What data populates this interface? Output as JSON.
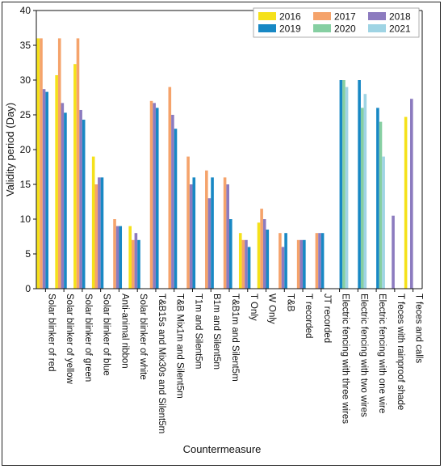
{
  "chart_data": {
    "type": "bar",
    "title": "",
    "xlabel": "Countermeasure",
    "ylabel": "Validity period (Day)",
    "ylim": [
      0,
      40
    ],
    "yticks": [
      0,
      5,
      10,
      15,
      20,
      25,
      30,
      35,
      40
    ],
    "grid": false,
    "legend_position": "top-right",
    "categories": [
      "Solar blinker of red",
      "Solar blinker of yellow",
      "Solar blinker of green",
      "Solar blinker of blue",
      "Anti-animal ribbon",
      "Solar blinker of white",
      "T&B15s and Mix30s and Silent5m",
      "T&B Mix1m and Silent5m",
      "T1m and Silent5m",
      "B1m and Silent5m",
      "T&B1m and Silent5m",
      "T Only",
      "W Only",
      "T&B",
      "T recorded",
      "JT recorded",
      "Electric fencing with three wires",
      "Electric fencing with two wires",
      "Electric fencing with one wire",
      "T feces with rainproof shade",
      "T feces and calls"
    ],
    "series": [
      {
        "name": "2016",
        "color": "#f5e11a",
        "values": [
          36,
          30.7,
          32.3,
          19,
          null,
          9,
          null,
          null,
          null,
          null,
          null,
          8,
          9.5,
          null,
          null,
          null,
          null,
          null,
          null,
          null,
          24.7
        ]
      },
      {
        "name": "2017",
        "color": "#f5a36b",
        "values": [
          36,
          36,
          36,
          15,
          10,
          7,
          27,
          29,
          19,
          17,
          16,
          7,
          11.5,
          8,
          7,
          8,
          null,
          null,
          null,
          null,
          null
        ]
      },
      {
        "name": "2018",
        "color": "#8c7bbf",
        "values": [
          28.7,
          26.7,
          25.7,
          16,
          9,
          8,
          26.7,
          25,
          15,
          13,
          15,
          7,
          10,
          6,
          7,
          8,
          null,
          null,
          null,
          10.5,
          27.3
        ]
      },
      {
        "name": "2019",
        "color": "#1888c4",
        "values": [
          28.3,
          25.3,
          24.3,
          16,
          9,
          7,
          26,
          23,
          16,
          16,
          10,
          6,
          8.5,
          8,
          7,
          8,
          30,
          30,
          26,
          null,
          null
        ]
      },
      {
        "name": "2020",
        "color": "#86cfa2",
        "values": [
          null,
          null,
          null,
          null,
          null,
          null,
          null,
          null,
          null,
          null,
          null,
          null,
          null,
          null,
          null,
          null,
          30,
          26,
          24,
          null,
          null
        ]
      },
      {
        "name": "2021",
        "color": "#9fd4e4",
        "values": [
          null,
          null,
          null,
          null,
          null,
          null,
          null,
          null,
          null,
          null,
          null,
          null,
          null,
          null,
          null,
          null,
          29,
          28,
          19,
          null,
          null
        ]
      }
    ]
  }
}
